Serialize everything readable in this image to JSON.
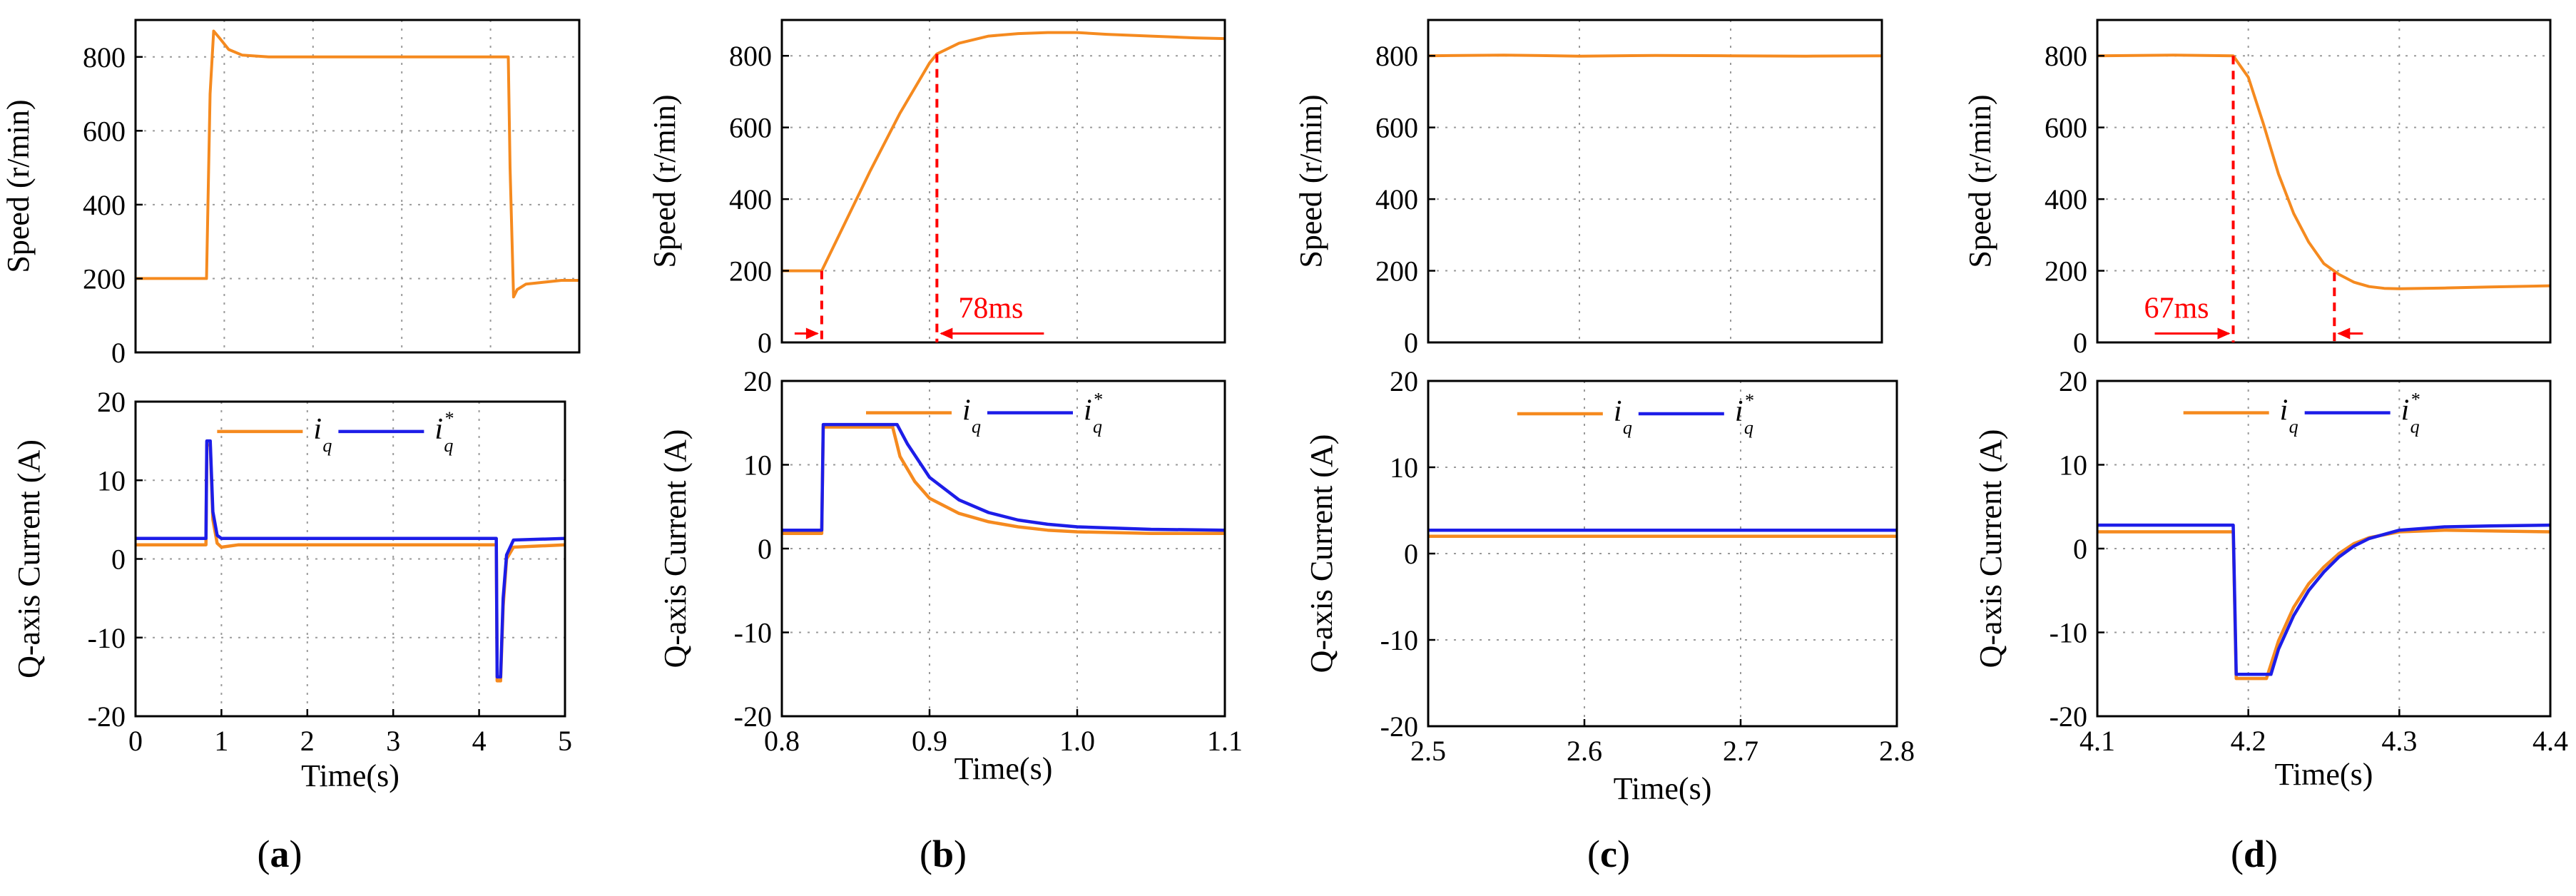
{
  "figure": {
    "panels": [
      {
        "label": "(a)",
        "label_main": "a",
        "speed": {
          "ylabel": "Speed (r/min)",
          "xlim": [
            0,
            5
          ],
          "ylim": [
            0,
            900
          ],
          "yticks": [
            0,
            200,
            400,
            600,
            800
          ],
          "grid": true,
          "series": [
            {
              "color": "#f58a1f",
              "x": [
                0,
                0.8,
                0.84,
                0.88,
                0.95,
                1.05,
                1.2,
                1.5,
                2.5,
                3.5,
                4.2,
                4.22,
                4.26,
                4.3,
                4.4,
                4.6,
                4.8,
                5.0
              ],
              "y": [
                200,
                200,
                700,
                870,
                850,
                820,
                805,
                800,
                800,
                800,
                800,
                500,
                150,
                170,
                185,
                190,
                195,
                195
              ]
            }
          ],
          "annotations": []
        },
        "current": {
          "ylabel": "Q-axis Current (A)",
          "xlabel": "Time(s)",
          "xlim": [
            0,
            5
          ],
          "ylim": [
            -20,
            20
          ],
          "xticks": [
            0,
            1,
            2,
            3,
            4,
            5
          ],
          "yticks": [
            -20,
            -10,
            0,
            10,
            20
          ],
          "grid": true,
          "legend": {
            "position": "top-center",
            "iq": "i",
            "iq_sub": "q",
            "iqref": "i",
            "iqref_sub": "q",
            "iqref_sup": "*"
          },
          "series": [
            {
              "name": "iq",
              "color": "#f58a1f",
              "x": [
                0,
                0.82,
                0.83,
                0.87,
                0.9,
                0.95,
                1.0,
                1.2,
                4.2,
                4.21,
                4.25,
                4.28,
                4.32,
                4.4,
                5.0
              ],
              "y": [
                1.8,
                1.8,
                14.5,
                14.5,
                5,
                2,
                1.5,
                1.8,
                1.8,
                -15.5,
                -15.5,
                -6,
                0,
                1.5,
                1.8
              ]
            },
            {
              "name": "iq*",
              "color": "#1d1de8",
              "x": [
                0,
                0.82,
                0.83,
                0.87,
                0.9,
                0.95,
                1.0,
                1.2,
                4.2,
                4.21,
                4.25,
                4.28,
                4.32,
                4.4,
                5.0
              ],
              "y": [
                2.6,
                2.6,
                15,
                15,
                6,
                3,
                2.6,
                2.6,
                2.6,
                -15,
                -15,
                -5,
                0.5,
                2.4,
                2.6
              ]
            }
          ]
        }
      },
      {
        "label": "(b)",
        "label_main": "b",
        "speed": {
          "ylabel": "Speed (r/min)",
          "xlim": [
            0.8,
            1.1
          ],
          "ylim": [
            0,
            900
          ],
          "yticks": [
            0,
            200,
            400,
            600,
            800
          ],
          "grid": true,
          "series": [
            {
              "color": "#f58a1f",
              "x": [
                0.8,
                0.827,
                0.84,
                0.86,
                0.88,
                0.9,
                0.905,
                0.92,
                0.94,
                0.96,
                0.98,
                1.0,
                1.02,
                1.05,
                1.08,
                1.1
              ],
              "y": [
                200,
                200,
                310,
                480,
                640,
                780,
                805,
                835,
                855,
                862,
                865,
                865,
                860,
                855,
                850,
                848
              ]
            }
          ],
          "annotations": [
            {
              "text": "78ms",
              "color": "#ff0000"
            }
          ]
        },
        "current": {
          "ylabel": "Q-axis Current (A)",
          "xlabel": "Time(s)",
          "xlim": [
            0.8,
            1.1
          ],
          "ylim": [
            -20,
            20
          ],
          "xticks": [
            0.8,
            0.9,
            1.0,
            1.1
          ],
          "xticklabels": [
            "0.8",
            "0.9",
            "1.0",
            "1.1"
          ],
          "yticks": [
            -20,
            -10,
            0,
            10,
            20
          ],
          "grid": true,
          "legend": {
            "position": "top-center",
            "iq": "i",
            "iq_sub": "q",
            "iqref": "i",
            "iqref_sub": "q",
            "iqref_sup": "*"
          },
          "series": [
            {
              "name": "iq",
              "color": "#f58a1f",
              "x": [
                0.8,
                0.827,
                0.828,
                0.875,
                0.88,
                0.89,
                0.9,
                0.92,
                0.94,
                0.96,
                0.98,
                1.0,
                1.05,
                1.1
              ],
              "y": [
                1.8,
                1.8,
                14.5,
                14.5,
                11,
                8,
                6,
                4.2,
                3.2,
                2.6,
                2.2,
                2.0,
                1.8,
                1.8
              ]
            },
            {
              "name": "iq*",
              "color": "#1d1de8",
              "x": [
                0.8,
                0.827,
                0.828,
                0.878,
                0.885,
                0.9,
                0.92,
                0.94,
                0.96,
                0.98,
                1.0,
                1.05,
                1.1
              ],
              "y": [
                2.2,
                2.2,
                14.8,
                14.8,
                12.5,
                8.5,
                5.8,
                4.3,
                3.4,
                2.9,
                2.6,
                2.3,
                2.2
              ]
            }
          ]
        }
      },
      {
        "label": "(c)",
        "label_main": "c",
        "speed": {
          "ylabel": "Speed (r/min)",
          "xlim": [
            2.5,
            2.8
          ],
          "ylim": [
            0,
            900
          ],
          "yticks": [
            0,
            200,
            400,
            600,
            800
          ],
          "grid": true,
          "series": [
            {
              "color": "#f58a1f",
              "x": [
                2.5,
                2.55,
                2.6,
                2.65,
                2.7,
                2.75,
                2.8
              ],
              "y": [
                800,
                802,
                799,
                801,
                800,
                799,
                800
              ]
            }
          ],
          "annotations": []
        },
        "current": {
          "ylabel": "Q-axis Current (A)",
          "xlabel": "Time(s)",
          "xlim": [
            2.5,
            2.8
          ],
          "ylim": [
            -20,
            20
          ],
          "xticks": [
            2.5,
            2.6,
            2.7,
            2.8
          ],
          "xticklabels": [
            "2.5",
            "2.6",
            "2.7",
            "2.8"
          ],
          "yticks": [
            -20,
            -10,
            0,
            10,
            20
          ],
          "grid": true,
          "legend": {
            "position": "top-center",
            "iq": "i",
            "iq_sub": "q",
            "iqref": "i",
            "iqref_sub": "q",
            "iqref_sup": "*"
          },
          "series": [
            {
              "name": "iq",
              "color": "#f58a1f",
              "x": [
                2.5,
                2.8
              ],
              "y": [
                2.0,
                2.0
              ]
            },
            {
              "name": "iq*",
              "color": "#1d1de8",
              "x": [
                2.5,
                2.8
              ],
              "y": [
                2.7,
                2.7
              ]
            }
          ]
        }
      },
      {
        "label": "(d)",
        "label_main": "d",
        "speed": {
          "ylabel": "Speed (r/min)",
          "xlim": [
            4.1,
            4.4
          ],
          "ylim": [
            0,
            900
          ],
          "yticks": [
            0,
            200,
            400,
            600,
            800
          ],
          "grid": true,
          "series": [
            {
              "color": "#f58a1f",
              "x": [
                4.1,
                4.15,
                4.19,
                4.2,
                4.21,
                4.22,
                4.23,
                4.24,
                4.25,
                4.26,
                4.27,
                4.28,
                4.29,
                4.3,
                4.33,
                4.36,
                4.4
              ],
              "y": [
                800,
                802,
                800,
                740,
                610,
                470,
                360,
                280,
                220,
                190,
                168,
                156,
                151,
                150,
                152,
                155,
                158
              ]
            }
          ],
          "annotations": [
            {
              "text": "67ms",
              "color": "#ff0000"
            }
          ]
        },
        "current": {
          "ylabel": "Q-axis Current (A)",
          "xlabel": "Time(s)",
          "xlim": [
            4.1,
            4.4
          ],
          "ylim": [
            -20,
            20
          ],
          "xticks": [
            4.1,
            4.2,
            4.3,
            4.4
          ],
          "xticklabels": [
            "4.1",
            "4.2",
            "4.3",
            "4.4"
          ],
          "yticks": [
            -20,
            -10,
            0,
            10,
            20
          ],
          "grid": true,
          "legend": {
            "position": "top-center",
            "iq": "i",
            "iq_sub": "q",
            "iqref": "i",
            "iqref_sub": "q",
            "iqref_sup": "*"
          },
          "series": [
            {
              "name": "iq",
              "color": "#f58a1f",
              "x": [
                4.1,
                4.19,
                4.192,
                4.212,
                4.22,
                4.23,
                4.24,
                4.25,
                4.26,
                4.27,
                4.28,
                4.3,
                4.33,
                4.36,
                4.4
              ],
              "y": [
                2.0,
                2.0,
                -15.5,
                -15.5,
                -11,
                -7,
                -4.2,
                -2.2,
                -0.6,
                0.6,
                1.3,
                2.0,
                2.2,
                2.1,
                2.0
              ]
            },
            {
              "name": "iq*",
              "color": "#1d1de8",
              "x": [
                4.1,
                4.19,
                4.192,
                4.215,
                4.22,
                4.23,
                4.24,
                4.25,
                4.26,
                4.27,
                4.28,
                4.3,
                4.33,
                4.36,
                4.4
              ],
              "y": [
                2.8,
                2.8,
                -15,
                -15,
                -12,
                -8,
                -5,
                -2.8,
                -1.0,
                0.3,
                1.2,
                2.2,
                2.6,
                2.7,
                2.8
              ]
            }
          ]
        }
      }
    ]
  }
}
